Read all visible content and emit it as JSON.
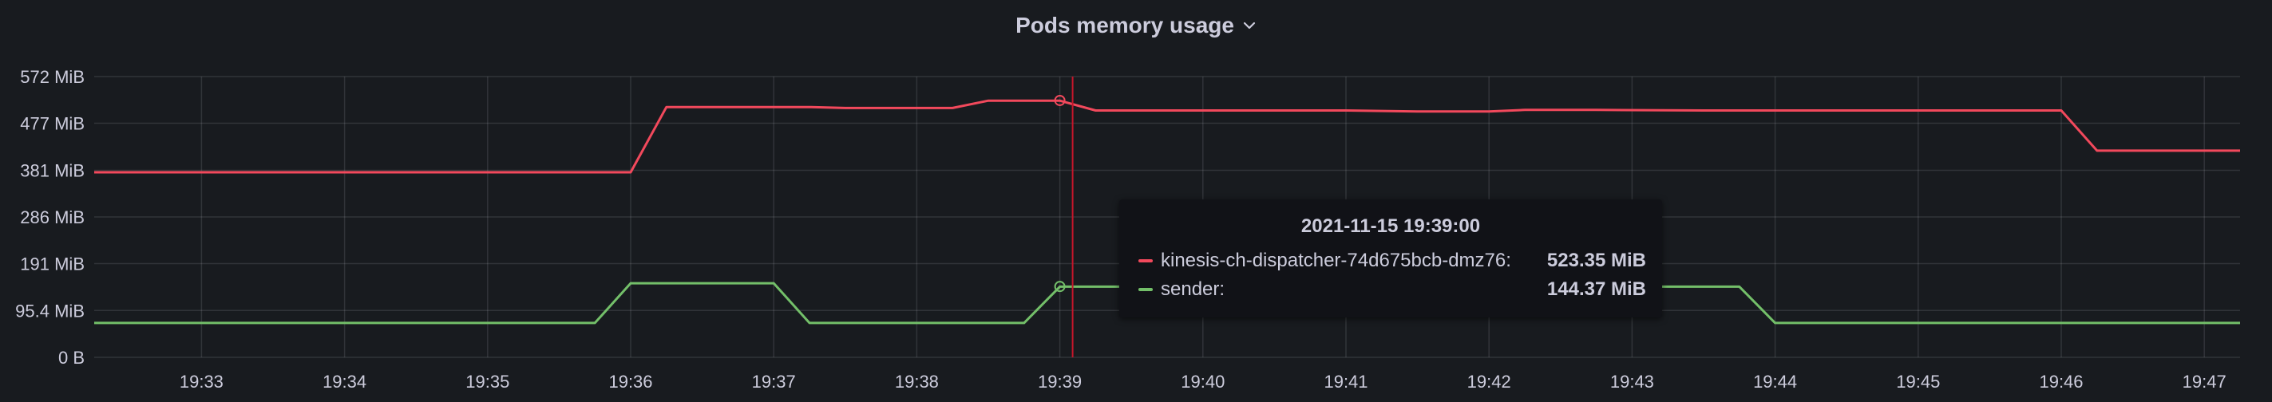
{
  "panel": {
    "title": "Pods memory usage"
  },
  "chart_data": {
    "type": "line",
    "title": "Pods memory usage",
    "xlabel": "",
    "ylabel": "",
    "y_unit": "MiB",
    "ylim": [
      0,
      572
    ],
    "y_ticks": [
      {
        "value": 0,
        "label": "0 B"
      },
      {
        "value": 95.4,
        "label": "95.4 MiB"
      },
      {
        "value": 191,
        "label": "191 MiB"
      },
      {
        "value": 286,
        "label": "286 MiB"
      },
      {
        "value": 381,
        "label": "381 MiB"
      },
      {
        "value": 477,
        "label": "477 MiB"
      },
      {
        "value": 572,
        "label": "572 MiB"
      }
    ],
    "x_range": [
      "19:32:15",
      "19:47:15"
    ],
    "x_ticks": [
      "19:33",
      "19:34",
      "19:35",
      "19:36",
      "19:37",
      "19:38",
      "19:39",
      "19:40",
      "19:41",
      "19:42",
      "19:43",
      "19:44",
      "19:45",
      "19:46",
      "19:47"
    ],
    "grid": true,
    "series": [
      {
        "name": "kinesis-ch-dispatcher-74d675bcb-dmz76",
        "color": "#f2495c",
        "points": [
          [
            "19:32:15",
            377
          ],
          [
            "19:36:00",
            377
          ],
          [
            "19:36:15",
            510
          ],
          [
            "19:37:15",
            510
          ],
          [
            "19:37:30",
            508
          ],
          [
            "19:38:15",
            508
          ],
          [
            "19:38:30",
            523
          ],
          [
            "19:39:00",
            523
          ],
          [
            "19:39:15",
            503
          ],
          [
            "19:40:00",
            503
          ],
          [
            "19:41:00",
            503
          ],
          [
            "19:41:30",
            501
          ],
          [
            "19:42:00",
            501
          ],
          [
            "19:42:15",
            504
          ],
          [
            "19:42:45",
            504
          ],
          [
            "19:43:30",
            503
          ],
          [
            "19:44:00",
            503
          ],
          [
            "19:46:00",
            503
          ],
          [
            "19:46:15",
            421
          ],
          [
            "19:47:15",
            421
          ]
        ]
      },
      {
        "name": "sender",
        "color": "#73bf69",
        "points": [
          [
            "19:32:15",
            70
          ],
          [
            "19:35:45",
            70
          ],
          [
            "19:36:00",
            151
          ],
          [
            "19:37:00",
            151
          ],
          [
            "19:37:15",
            70
          ],
          [
            "19:38:45",
            70
          ],
          [
            "19:39:00",
            144
          ],
          [
            "19:39:15",
            144
          ],
          [
            "19:43:45",
            144
          ],
          [
            "19:44:00",
            70
          ],
          [
            "19:47:15",
            70
          ]
        ]
      }
    ],
    "hover": {
      "time_label": "2021-11-15 19:39:00",
      "time": "19:39:00",
      "rows": [
        {
          "name": "kinesis-ch-dispatcher-74d675bcb-dmz76:",
          "value": "523.35 MiB",
          "color": "#f2495c"
        },
        {
          "name": "sender:",
          "value": "144.37 MiB",
          "color": "#73bf69"
        }
      ]
    }
  }
}
